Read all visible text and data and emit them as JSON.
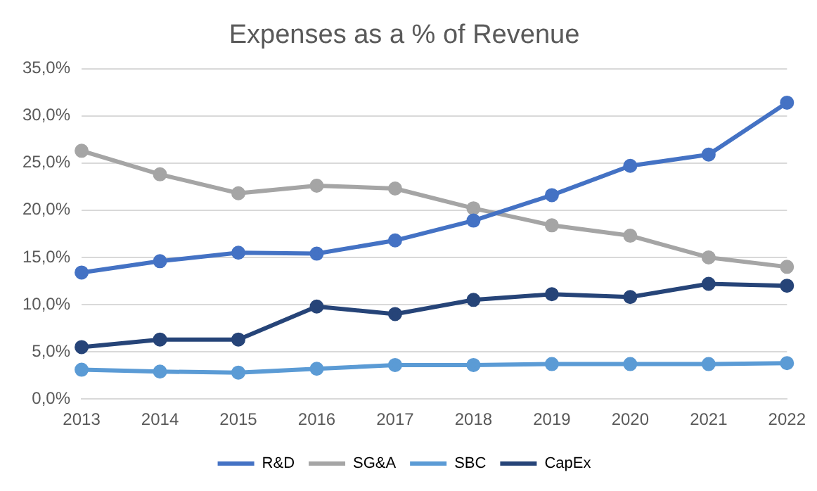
{
  "chart_data": {
    "type": "line",
    "title": "Expenses as a % of Revenue",
    "categories": [
      "2013",
      "2014",
      "2015",
      "2016",
      "2017",
      "2018",
      "2019",
      "2020",
      "2021",
      "2022"
    ],
    "series": [
      {
        "name": "R&D",
        "color": "#4472c4",
        "values": [
          13.4,
          14.6,
          15.5,
          15.4,
          16.8,
          18.9,
          21.6,
          24.7,
          25.9,
          31.4
        ]
      },
      {
        "name": "SG&A",
        "color": "#a5a5a5",
        "values": [
          26.3,
          23.8,
          21.8,
          22.6,
          22.3,
          20.2,
          18.4,
          17.3,
          15.0,
          14.0
        ]
      },
      {
        "name": "SBC",
        "color": "#5b9bd5",
        "values": [
          3.1,
          2.9,
          2.8,
          3.2,
          3.6,
          3.6,
          3.7,
          3.7,
          3.7,
          3.8
        ]
      },
      {
        "name": "CapEx",
        "color": "#264478",
        "values": [
          5.5,
          6.3,
          6.3,
          9.8,
          9.0,
          10.5,
          11.1,
          10.8,
          12.2,
          12.0
        ]
      }
    ],
    "ylim": [
      0,
      35
    ],
    "yticks": [
      {
        "value": 0,
        "label": "0,0%"
      },
      {
        "value": 5,
        "label": "5,0%"
      },
      {
        "value": 10,
        "label": "10,0%"
      },
      {
        "value": 15,
        "label": "15,0%"
      },
      {
        "value": 20,
        "label": "20,0%"
      },
      {
        "value": 25,
        "label": "25,0%"
      },
      {
        "value": 30,
        "label": "30,0%"
      },
      {
        "value": 35,
        "label": "35,0%"
      }
    ],
    "grid": "y",
    "legend": "bottom",
    "marker": "circle",
    "line_style": "solid"
  }
}
